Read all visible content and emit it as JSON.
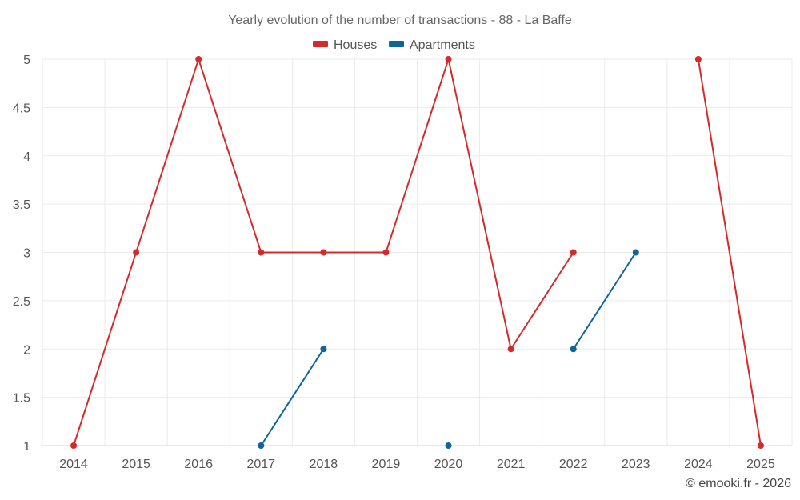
{
  "chart_data": {
    "type": "line",
    "title": "Yearly evolution of the number of transactions - 88 - La Baffe",
    "xlabel": "",
    "ylabel": "",
    "x": [
      2014,
      2015,
      2016,
      2017,
      2018,
      2019,
      2020,
      2021,
      2022,
      2023,
      2024,
      2025
    ],
    "x_tick_labels": [
      "2014",
      "2015",
      "2016",
      "2017",
      "2018",
      "2019",
      "2020",
      "2021",
      "2022",
      "2023",
      "2024",
      "2025"
    ],
    "ylim": [
      1,
      5
    ],
    "y_ticks": [
      1,
      1.5,
      2,
      2.5,
      3,
      3.5,
      4,
      4.5,
      5
    ],
    "y_tick_labels": [
      "1",
      "1.5",
      "2",
      "2.5",
      "3",
      "3.5",
      "4",
      "4.5",
      "5"
    ],
    "grid": true,
    "legend_position": "top-center",
    "series": [
      {
        "name": "Houses",
        "color": "#d42a2a",
        "values": [
          1,
          3,
          5,
          3,
          3,
          3,
          5,
          2,
          3,
          null,
          5,
          1
        ]
      },
      {
        "name": "Apartments",
        "color": "#0d6699",
        "values": [
          null,
          null,
          null,
          1,
          2,
          null,
          1,
          null,
          2,
          3,
          null,
          null
        ]
      }
    ]
  },
  "credit": "© emooki.fr - 2026"
}
